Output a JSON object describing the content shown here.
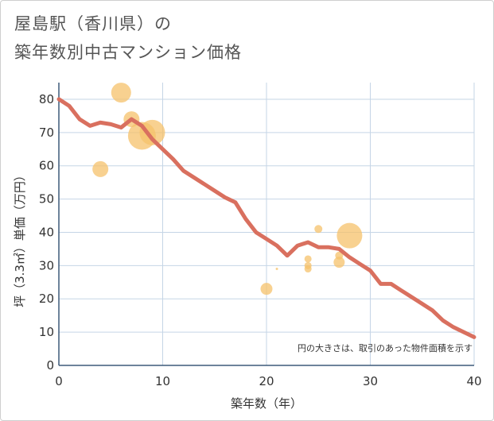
{
  "chart_data": {
    "type": "scatter",
    "title_line1": "屋島駅（香川県）の",
    "title_line2": "築年数別中古マンション価格",
    "xlabel": "築年数（年）",
    "ylabel": "坪（3.3㎡）単価（万円）",
    "xlim": [
      0,
      40
    ],
    "ylim": [
      0,
      85
    ],
    "x_ticks": [
      0,
      10,
      20,
      30,
      40
    ],
    "y_ticks": [
      0,
      10,
      20,
      30,
      40,
      50,
      60,
      70,
      80
    ],
    "grid": true,
    "annotation": "円の大きさは、取引のあった物件面積を示す",
    "colors": {
      "line": "#d9705f",
      "bubble": "#f5c26b",
      "grid": "#c5d5e6",
      "axis": "#3d5a7a"
    },
    "series": [
      {
        "name": "trend",
        "type": "line",
        "x": [
          0,
          1,
          2,
          3,
          4,
          5,
          6,
          7,
          8,
          9,
          10,
          11,
          12,
          13,
          14,
          15,
          16,
          17,
          18,
          19,
          20,
          21,
          22,
          23,
          24,
          25,
          26,
          27,
          28,
          29,
          30,
          31,
          32,
          33,
          34,
          35,
          36,
          37,
          38,
          39,
          40
        ],
        "y": [
          80,
          78,
          74,
          72,
          73,
          72.5,
          71.5,
          74,
          72,
          68,
          65,
          62,
          58.5,
          56.5,
          54.5,
          52.5,
          50.5,
          49,
          44,
          40,
          38,
          36,
          33,
          36,
          37,
          35.5,
          35.5,
          35,
          32.5,
          30.5,
          28.5,
          24.5,
          24.5,
          22.5,
          20.5,
          18.5,
          16.5,
          13.5,
          11.5,
          10,
          8.5
        ]
      },
      {
        "name": "transactions",
        "type": "bubble",
        "points": [
          {
            "x": 4,
            "y": 59,
            "size": 20
          },
          {
            "x": 6,
            "y": 82,
            "size": 25
          },
          {
            "x": 7,
            "y": 74,
            "size": 20
          },
          {
            "x": 8,
            "y": 69,
            "size": 35
          },
          {
            "x": 9,
            "y": 70,
            "size": 32
          },
          {
            "x": 20,
            "y": 23,
            "size": 15
          },
          {
            "x": 21,
            "y": 29,
            "size": 3
          },
          {
            "x": 24,
            "y": 32,
            "size": 9
          },
          {
            "x": 24,
            "y": 30,
            "size": 9
          },
          {
            "x": 24,
            "y": 29,
            "size": 9
          },
          {
            "x": 25,
            "y": 41,
            "size": 10
          },
          {
            "x": 27,
            "y": 33,
            "size": 10
          },
          {
            "x": 27,
            "y": 31,
            "size": 14
          },
          {
            "x": 28,
            "y": 39,
            "size": 32
          }
        ]
      }
    ]
  }
}
